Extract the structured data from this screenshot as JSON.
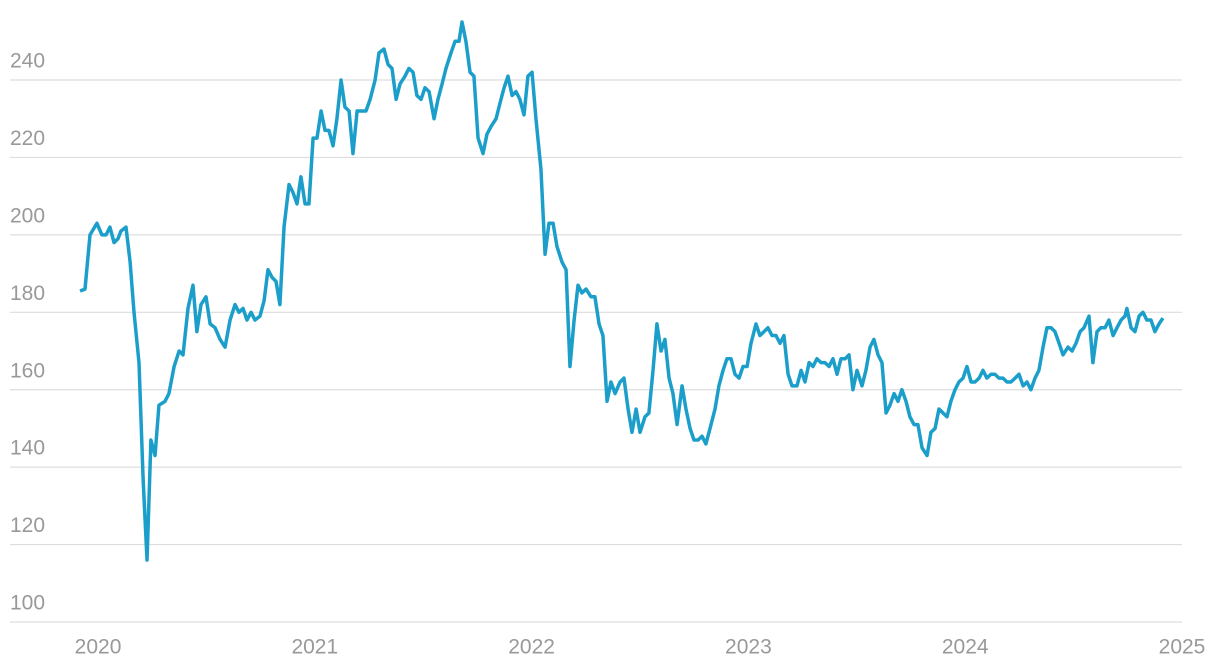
{
  "chart_data": {
    "type": "line",
    "x": [
      2019.917,
      2019.94,
      2019.963,
      2019.995,
      2020.018,
      2020.037,
      2020.055,
      2020.074,
      2020.092,
      2020.106,
      2020.129,
      2020.148,
      2020.166,
      2020.189,
      2020.208,
      2020.226,
      2020.244,
      2020.263,
      2020.281,
      2020.309,
      2020.327,
      2020.351,
      2020.374,
      2020.392,
      2020.415,
      2020.438,
      2020.456,
      2020.475,
      2020.498,
      2020.517,
      2020.54,
      2020.563,
      2020.586,
      2020.609,
      2020.632,
      2020.65,
      2020.669,
      2020.687,
      2020.706,
      2020.724,
      2020.747,
      2020.766,
      2020.784,
      2020.803,
      2020.821,
      2020.839,
      2020.858,
      2020.881,
      2020.899,
      2020.918,
      2020.936,
      2020.955,
      2020.973,
      2020.992,
      2021.01,
      2021.029,
      2021.047,
      2021.065,
      2021.084,
      2021.102,
      2021.121,
      2021.139,
      2021.158,
      2021.176,
      2021.195,
      2021.218,
      2021.236,
      2021.255,
      2021.278,
      2021.296,
      2021.319,
      2021.338,
      2021.356,
      2021.375,
      2021.393,
      2021.416,
      2021.434,
      2021.453,
      2021.471,
      2021.49,
      2021.508,
      2021.527,
      2021.55,
      2021.568,
      2021.587,
      2021.605,
      2021.628,
      2021.647,
      2021.665,
      2021.679,
      2021.697,
      2021.716,
      2021.734,
      2021.753,
      2021.776,
      2021.794,
      2021.813,
      2021.836,
      2021.854,
      2021.873,
      2021.891,
      2021.91,
      2021.928,
      2021.946,
      2021.965,
      2021.983,
      2022.002,
      2022.02,
      2022.043,
      2022.062,
      2022.08,
      2022.099,
      2022.117,
      2022.14,
      2022.159,
      2022.177,
      2022.196,
      2022.214,
      2022.232,
      2022.251,
      2022.274,
      2022.292,
      2022.311,
      2022.329,
      2022.348,
      2022.366,
      2022.385,
      2022.408,
      2022.426,
      2022.445,
      2022.463,
      2022.482,
      2022.5,
      2022.523,
      2022.541,
      2022.56,
      2022.578,
      2022.597,
      2022.615,
      2022.634,
      2022.652,
      2022.671,
      2022.694,
      2022.712,
      2022.731,
      2022.749,
      2022.768,
      2022.786,
      2022.804,
      2022.823,
      2022.846,
      2022.864,
      2022.883,
      2022.901,
      2022.92,
      2022.938,
      2022.957,
      2022.975,
      2022.994,
      2023.012,
      2023.035,
      2023.053,
      2023.072,
      2023.09,
      2023.109,
      2023.127,
      2023.146,
      2023.164,
      2023.183,
      2023.201,
      2023.224,
      2023.243,
      2023.261,
      2023.28,
      2023.298,
      2023.316,
      2023.335,
      2023.353,
      2023.372,
      2023.39,
      2023.409,
      2023.427,
      2023.446,
      2023.464,
      2023.482,
      2023.501,
      2023.524,
      2023.542,
      2023.561,
      2023.579,
      2023.598,
      2023.616,
      2023.635,
      2023.653,
      2023.672,
      2023.69,
      2023.708,
      2023.727,
      2023.745,
      2023.764,
      2023.782,
      2023.801,
      2023.824,
      2023.842,
      2023.861,
      2023.879,
      2023.898,
      2023.916,
      2023.934,
      2023.953,
      2023.971,
      2023.99,
      2024.008,
      2024.027,
      2024.045,
      2024.064,
      2024.082,
      2024.1,
      2024.119,
      2024.137,
      2024.156,
      2024.174,
      2024.193,
      2024.211,
      2024.23,
      2024.248,
      2024.267,
      2024.285,
      2024.303,
      2024.322,
      2024.34,
      2024.359,
      2024.377,
      2024.396,
      2024.414,
      2024.433,
      2024.451,
      2024.474,
      2024.493,
      2024.511,
      2024.53,
      2024.548,
      2024.571,
      2024.589,
      2024.608,
      2024.626,
      2024.645,
      2024.663,
      2024.682,
      2024.7,
      2024.719,
      2024.737,
      2024.746,
      2024.765,
      2024.783,
      2024.802,
      2024.82,
      2024.838,
      2024.857,
      2024.875,
      2024.894,
      2024.912
    ],
    "values": [
      185.5,
      186,
      200,
      203,
      200,
      200,
      202,
      198,
      199,
      201,
      202,
      193,
      180,
      167,
      137,
      116,
      147,
      143,
      156,
      157,
      159,
      166,
      170,
      169,
      181,
      187,
      175,
      182,
      184,
      177,
      176,
      173,
      171,
      178,
      182,
      180,
      181,
      178,
      180,
      178,
      179,
      183,
      191,
      189,
      188,
      182,
      202,
      213,
      211,
      208,
      215,
      208,
      208,
      225,
      225,
      232,
      227,
      227,
      223,
      230,
      240,
      233,
      232,
      221,
      232,
      232,
      232,
      235,
      240,
      247,
      248,
      244,
      243,
      235,
      239,
      241,
      243,
      242,
      236,
      235,
      238,
      237,
      230,
      235,
      239,
      243,
      247,
      250,
      250,
      255,
      250,
      242,
      241,
      225,
      221,
      226,
      228,
      230,
      234,
      238,
      241,
      236,
      237,
      235,
      231,
      241,
      242,
      230,
      217,
      195,
      203,
      203,
      197,
      193,
      191,
      166,
      178,
      187,
      185,
      186,
      184,
      184,
      177,
      174,
      157,
      162,
      159,
      162,
      163,
      155,
      149,
      155,
      149,
      153,
      154,
      165,
      177,
      170,
      173,
      163,
      159,
      151,
      161,
      155,
      150,
      147,
      147,
      148,
      146,
      150,
      155,
      161,
      165,
      168,
      168,
      164,
      163,
      166,
      166,
      172,
      177,
      174,
      175,
      176,
      174,
      174,
      172,
      174,
      164,
      161,
      161,
      165,
      162,
      167,
      166,
      168,
      167,
      167,
      166,
      168,
      164,
      168,
      168,
      169,
      160,
      165,
      161,
      165,
      171,
      173,
      169,
      167,
      154,
      156,
      159,
      157,
      160,
      157,
      153,
      151,
      151,
      145,
      143,
      149,
      150,
      155,
      154,
      153,
      157,
      160,
      162,
      163,
      166,
      162,
      162,
      163,
      165,
      163,
      164,
      164,
      163,
      163,
      162,
      162,
      163,
      164,
      161,
      162,
      160,
      163,
      165,
      171,
      176,
      176,
      175,
      172,
      169,
      171,
      170,
      172,
      175,
      176,
      179,
      167,
      175,
      176,
      176,
      178,
      174,
      176,
      178,
      179,
      181,
      176,
      175,
      179,
      180,
      178,
      178,
      175,
      177,
      178.5
    ],
    "color": "#1b9fca",
    "xlim": [
      2019.594,
      2025
    ],
    "xticks": [
      2020,
      2021,
      2022,
      2023,
      2024,
      2025
    ],
    "ylim": [
      100,
      260
    ],
    "yticks": [
      100,
      120,
      140,
      160,
      180,
      200,
      220,
      240
    ],
    "grid": true
  }
}
